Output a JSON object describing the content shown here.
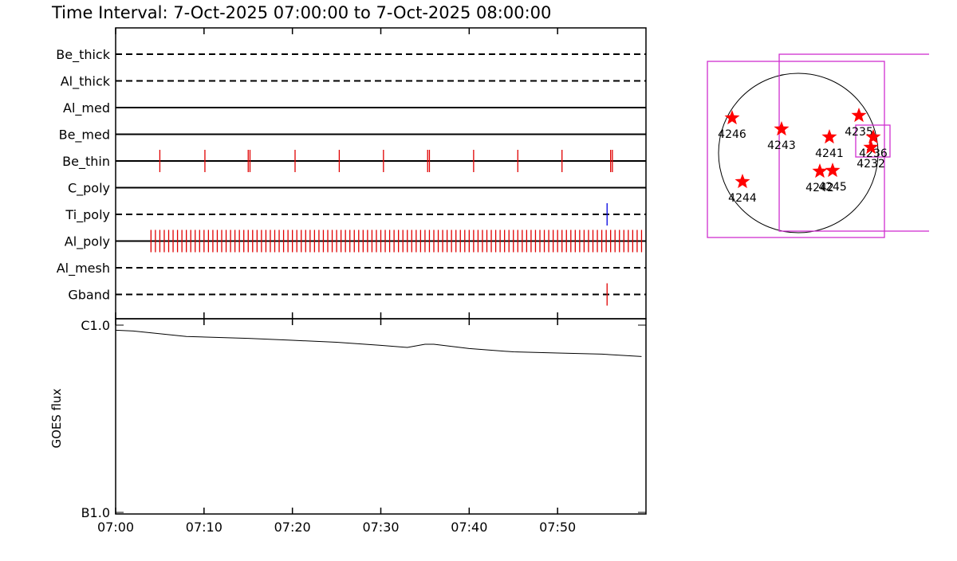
{
  "title": "Time Interval:  7-Oct-2025 07:00:00 to  7-Oct-2025 08:00:00",
  "timeline": {
    "xlim": [
      0,
      60
    ],
    "xticks": [
      {
        "value": 0,
        "label": "07:00"
      },
      {
        "value": 10,
        "label": "07:10"
      },
      {
        "value": 20,
        "label": "07:20"
      },
      {
        "value": 30,
        "label": "07:30"
      },
      {
        "value": 40,
        "label": "07:40"
      },
      {
        "value": 50,
        "label": "07:50"
      }
    ],
    "filters": [
      {
        "name": "Be_thick",
        "style": "dashed",
        "exposures": []
      },
      {
        "name": "Al_thick",
        "style": "dashed",
        "exposures": []
      },
      {
        "name": "Al_med",
        "style": "solid",
        "exposures": []
      },
      {
        "name": "Be_med",
        "style": "solid",
        "exposures": []
      },
      {
        "name": "Be_thin",
        "style": "solid",
        "color": "#e00000",
        "exposures": [
          5,
          10.1,
          15,
          15.2,
          20.3,
          25.3,
          30.3,
          35.3,
          35.5,
          40.5,
          45.5,
          50.5,
          56,
          56.2
        ]
      },
      {
        "name": "C_poly",
        "style": "solid",
        "exposures": []
      },
      {
        "name": "Ti_poly",
        "style": "dashed",
        "color": "#0000e0",
        "exposures": [
          55.6
        ]
      },
      {
        "name": "Al_poly",
        "style": "solid",
        "color": "#e00000",
        "exposures": [
          4,
          4.5,
          5,
          5.5,
          6,
          6.5,
          7,
          7.5,
          8,
          8.5,
          9,
          9.5,
          10,
          10.5,
          11,
          11.5,
          12,
          12.5,
          13,
          13.5,
          14,
          14.5,
          15,
          15.5,
          16,
          16.5,
          17,
          17.5,
          18,
          18.5,
          19,
          19.5,
          20,
          20.5,
          21,
          21.5,
          22,
          22.5,
          23,
          23.5,
          24,
          24.5,
          25,
          25.5,
          26,
          26.5,
          27,
          27.5,
          28,
          28.5,
          29,
          29.5,
          30,
          30.5,
          31,
          31.5,
          32,
          32.5,
          33,
          33.5,
          34,
          34.5,
          35,
          35.5,
          36,
          36.5,
          37,
          37.5,
          38,
          38.5,
          39,
          39.5,
          40,
          40.5,
          41,
          41.5,
          42,
          42.5,
          43,
          43.5,
          44,
          44.5,
          45,
          45.5,
          46,
          46.5,
          47,
          47.5,
          48,
          48.5,
          49,
          49.5,
          50,
          50.5,
          51,
          51.5,
          52,
          52.5,
          53,
          53.5,
          54,
          54.5,
          55,
          55.5,
          56,
          56.5,
          57,
          57.5,
          58,
          58.5,
          59,
          59.5
        ]
      },
      {
        "name": "Al_mesh",
        "style": "dashed",
        "exposures": []
      },
      {
        "name": "Gband",
        "style": "dashed",
        "color": "#e00000",
        "exposures": [
          55.6
        ]
      }
    ]
  },
  "goes": {
    "type": "line",
    "y_label": "GOES flux",
    "log_scale": true,
    "ylim": [
      1e-07,
      1e-06
    ],
    "yticks": [
      {
        "value": 1e-06,
        "label": "C1.0"
      },
      {
        "value": 1e-07,
        "label": "B1.0"
      }
    ],
    "x": [
      0,
      2,
      8,
      15,
      20,
      25,
      30,
      33,
      35,
      36,
      40,
      45,
      50,
      55,
      59.5
    ],
    "values": [
      9.4e-07,
      9.3e-07,
      8.7e-07,
      8.5e-07,
      8.3e-07,
      8.1e-07,
      7.8e-07,
      7.6e-07,
      7.9e-07,
      7.9e-07,
      7.5e-07,
      7.2e-07,
      7.1e-07,
      7e-07,
      6.8e-07
    ]
  },
  "map": {
    "regions": [
      {
        "label": "4246",
        "x": -797,
        "y": 422
      },
      {
        "label": "4243",
        "x": -202,
        "y": 288
      },
      {
        "label": "4241",
        "x": 374,
        "y": 192
      },
      {
        "label": "4235",
        "x": 730,
        "y": 451
      },
      {
        "label": "4236",
        "x": 902,
        "y": 192
      },
      {
        "label": "4232",
        "x": 874,
        "y": 67
      },
      {
        "label": "4242",
        "x": 259,
        "y": -221
      },
      {
        "label": "4245",
        "x": 413,
        "y": -211
      },
      {
        "label": "4244",
        "x": -672,
        "y": -346
      }
    ],
    "boxes": [
      {
        "x": [
          -1094,
          1037
        ],
        "y": [
          -1018,
          1104
        ]
      },
      {
        "x": [
          -230,
          2000
        ],
        "y": [
          -941,
          1190
        ]
      },
      {
        "x": [
          691,
          1104
        ],
        "y": [
          -48,
          336
        ]
      }
    ]
  }
}
